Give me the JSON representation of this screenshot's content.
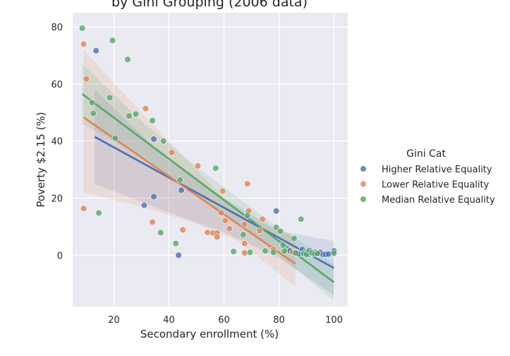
{
  "chart_data": {
    "type": "scatter",
    "title": "by Gini Grouping (2006 data)",
    "xlabel": "Secondary enrollment (%)",
    "ylabel": "Poverty $2.15 (%)",
    "xlim": [
      5,
      105
    ],
    "ylim": [
      -18,
      85
    ],
    "xticks": [
      20,
      40,
      60,
      80,
      100
    ],
    "yticks": [
      0,
      20,
      40,
      60,
      80
    ],
    "grid": true,
    "background": "#eaeaf2",
    "legend": {
      "title": "Gini Cat",
      "placement": "right"
    },
    "series": [
      {
        "name": "Higher Relative Equality",
        "color": "#4c72b0",
        "points": [
          [
            13.5,
            71.7
          ],
          [
            31.0,
            17.5
          ],
          [
            34.5,
            40.7
          ],
          [
            34.5,
            20.5
          ],
          [
            43.5,
            0.0
          ],
          [
            44.5,
            22.8
          ],
          [
            79.0,
            15.5
          ],
          [
            84.0,
            1.5
          ],
          [
            87.0,
            0.5
          ],
          [
            88.5,
            2.0
          ],
          [
            89.0,
            0.8
          ],
          [
            90.0,
            1.0
          ],
          [
            91.0,
            0.3
          ],
          [
            92.0,
            0.6
          ],
          [
            93.0,
            1.0
          ],
          [
            94.0,
            0.5
          ],
          [
            95.0,
            1.0
          ],
          [
            96.0,
            0.3
          ],
          [
            97.0,
            0.3
          ],
          [
            98.0,
            0.4
          ],
          [
            100.0,
            1.5
          ]
        ],
        "trend": [
          [
            13.0,
            41.5
          ],
          [
            100.0,
            -4.5
          ]
        ],
        "ci_upper": [
          [
            13.0,
            58.0
          ],
          [
            40.0,
            33.0
          ],
          [
            60.0,
            20.0
          ],
          [
            80.0,
            8.5
          ],
          [
            100.0,
            5.0
          ]
        ],
        "ci_lower": [
          [
            13.0,
            25.0
          ],
          [
            40.0,
            15.0
          ],
          [
            60.0,
            8.0
          ],
          [
            80.0,
            -1.0
          ],
          [
            100.0,
            -14.0
          ]
        ]
      },
      {
        "name": "Lower Relative Equality",
        "color": "#dd8452",
        "points": [
          [
            9.0,
            74.0
          ],
          [
            9.0,
            16.4
          ],
          [
            10.0,
            61.8
          ],
          [
            31.5,
            51.4
          ],
          [
            34.0,
            11.6
          ],
          [
            41.0,
            36.0
          ],
          [
            45.0,
            8.9
          ],
          [
            50.5,
            31.3
          ],
          [
            54.0,
            8.0
          ],
          [
            56.0,
            7.8
          ],
          [
            57.5,
            7.8
          ],
          [
            57.5,
            6.4
          ],
          [
            59.0,
            14.8
          ],
          [
            59.5,
            22.5
          ],
          [
            60.5,
            12.1
          ],
          [
            62.0,
            9.3
          ],
          [
            67.5,
            10.8
          ],
          [
            67.5,
            4.1
          ],
          [
            67.5,
            0.8
          ],
          [
            68.5,
            25.0
          ],
          [
            69.0,
            15.5
          ],
          [
            73.0,
            8.6
          ],
          [
            74.0,
            12.6
          ],
          [
            78.0,
            2.0
          ],
          [
            85.0,
            1.0
          ]
        ],
        "trend": [
          [
            9.0,
            48.3
          ],
          [
            86.0,
            -3.0
          ]
        ],
        "ci_upper": [
          [
            9.0,
            72.0
          ],
          [
            30.0,
            50.0
          ],
          [
            50.0,
            30.0
          ],
          [
            65.0,
            15.0
          ],
          [
            86.0,
            6.0
          ]
        ],
        "ci_lower": [
          [
            9.0,
            22.0
          ],
          [
            30.0,
            17.0
          ],
          [
            50.0,
            11.0
          ],
          [
            65.0,
            5.0
          ],
          [
            86.0,
            -11.0
          ]
        ]
      },
      {
        "name": "Median Relative Equality",
        "color": "#55a868",
        "points": [
          [
            8.5,
            79.6
          ],
          [
            12.0,
            53.5
          ],
          [
            12.5,
            49.7
          ],
          [
            14.5,
            14.8
          ],
          [
            18.5,
            55.2
          ],
          [
            19.5,
            75.3
          ],
          [
            20.5,
            41.0
          ],
          [
            25.0,
            68.6
          ],
          [
            25.5,
            48.8
          ],
          [
            28.0,
            49.5
          ],
          [
            34.0,
            47.2
          ],
          [
            37.0,
            7.9
          ],
          [
            38.0,
            40.0
          ],
          [
            42.5,
            4.1
          ],
          [
            44.0,
            26.4
          ],
          [
            57.0,
            30.5
          ],
          [
            63.5,
            1.3
          ],
          [
            67.0,
            7.2
          ],
          [
            68.5,
            13.9
          ],
          [
            69.5,
            1.0
          ],
          [
            75.0,
            1.5
          ],
          [
            78.0,
            1.0
          ],
          [
            79.0,
            9.8
          ],
          [
            80.5,
            8.4
          ],
          [
            81.5,
            3.5
          ],
          [
            82.0,
            1.5
          ],
          [
            85.5,
            5.9
          ],
          [
            86.0,
            0.8
          ],
          [
            88.0,
            12.6
          ],
          [
            89.0,
            0.5
          ],
          [
            90.0,
            0.3
          ],
          [
            91.0,
            1.7
          ],
          [
            92.0,
            0.8
          ],
          [
            93.0,
            0.4
          ],
          [
            94.0,
            0.6
          ],
          [
            100.0,
            0.7
          ]
        ],
        "trend": [
          [
            8.5,
            56.5
          ],
          [
            100.0,
            -9.5
          ]
        ],
        "ci_upper": [
          [
            8.5,
            67.0
          ],
          [
            30.0,
            47.0
          ],
          [
            50.0,
            31.0
          ],
          [
            75.0,
            13.0
          ],
          [
            100.0,
            -3.0
          ]
        ],
        "ci_lower": [
          [
            8.5,
            46.0
          ],
          [
            30.0,
            35.0
          ],
          [
            50.0,
            21.0
          ],
          [
            75.0,
            4.0
          ],
          [
            100.0,
            -16.0
          ]
        ]
      }
    ]
  }
}
